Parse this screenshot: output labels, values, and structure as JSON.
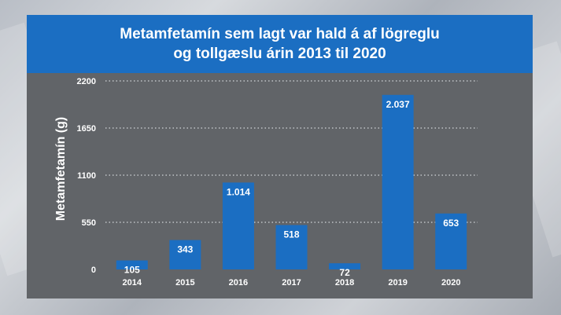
{
  "chart_data": {
    "type": "bar",
    "title_line1": "Metamfetamín sem lagt var hald á af lögreglu",
    "title_line2": "og tollgæslu árin 2013 til 2020",
    "ylabel": "Metamfetamín (g)",
    "xlabel": "",
    "categories": [
      "2014",
      "2015",
      "2016",
      "2017",
      "2018",
      "2019",
      "2020"
    ],
    "values": [
      105,
      343,
      1014,
      518,
      72,
      2037,
      653
    ],
    "data_labels": [
      "105",
      "343",
      "1.014",
      "518",
      "72",
      "2.037",
      "653"
    ],
    "yticks": [
      0,
      550,
      1100,
      1650,
      2200
    ],
    "ylim": [
      0,
      2200
    ],
    "grid": "dotted horizontal",
    "bar_color": "#1b6ec2",
    "panel_color": "#616468"
  }
}
